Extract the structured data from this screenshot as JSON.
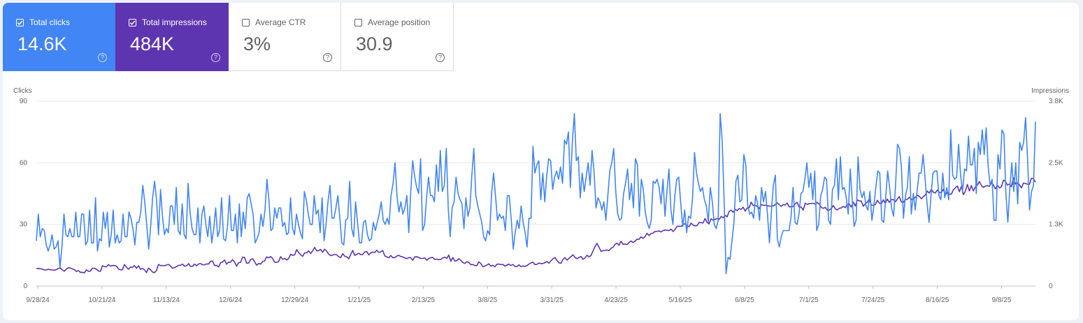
{
  "metrics": [
    {
      "label": "Total clicks",
      "value": "14.6K",
      "checked": true
    },
    {
      "label": "Total impressions",
      "value": "484K",
      "checked": true
    },
    {
      "label": "Average CTR",
      "value": "3%",
      "checked": false
    },
    {
      "label": "Average position",
      "value": "30.9",
      "checked": false
    }
  ],
  "colors": {
    "clicks": "#4285f4",
    "impressions": "#5e35b1",
    "grid": "#e8eaed",
    "text": "#5f6368",
    "axis": "#bdc1c6"
  },
  "icons": {
    "checkbox": "checkbox-icon",
    "help": "help-icon"
  },
  "chart_data": {
    "type": "line",
    "left_axis": {
      "label": "Clicks",
      "ticks": [
        "0",
        "30",
        "60",
        "90"
      ],
      "range": [
        0,
        90
      ]
    },
    "right_axis": {
      "label": "Impressions",
      "ticks": [
        "0",
        "1.3K",
        "2.5K",
        "3.8K"
      ],
      "range": [
        0,
        3800
      ]
    },
    "x_ticks": [
      "9/28/24",
      "10/21/24",
      "11/13/24",
      "12/6/24",
      "12/29/24",
      "1/21/25",
      "2/13/25",
      "3/8/25",
      "3/31/25",
      "4/23/25",
      "5/16/25",
      "6/8/25",
      "7/1/25",
      "7/24/25",
      "8/16/25",
      "9/8/25"
    ],
    "x_start": "9/28/24",
    "x_end": "9/26/25",
    "series": [
      {
        "key": "clicks",
        "axis": "left",
        "color": "#4285f4",
        "values": [
          22,
          35,
          24,
          28,
          27,
          20,
          17,
          20,
          25,
          18,
          19,
          22,
          9,
          19,
          35,
          25,
          24,
          28,
          24,
          24,
          36,
          24,
          24,
          35,
          35,
          20,
          22,
          37,
          21,
          21,
          43,
          17,
          23,
          22,
          36,
          28,
          36,
          19,
          25,
          37,
          21,
          25,
          21,
          22,
          35,
          24,
          24,
          36,
          33,
          28,
          20,
          31,
          31,
          36,
          49,
          41,
          30,
          18,
          29,
          43,
          51,
          42,
          25,
          47,
          34,
          25,
          28,
          26,
          39,
          39,
          30,
          48,
          27,
          25,
          40,
          25,
          23,
          50,
          36,
          28,
          25,
          25,
          38,
          21,
          35,
          39,
          30,
          24,
          34,
          21,
          28,
          38,
          24,
          27,
          43,
          23,
          22,
          29,
          44,
          27,
          27,
          35,
          21,
          40,
          24,
          36,
          28,
          43,
          45,
          40,
          35,
          21,
          23,
          26,
          35,
          29,
          37,
          52,
          42,
          27,
          28,
          38,
          33,
          38,
          38,
          29,
          31,
          25,
          26,
          43,
          28,
          25,
          35,
          30,
          26,
          23,
          46,
          42,
          35,
          30,
          30,
          44,
          35,
          37,
          26,
          43,
          22,
          30,
          41,
          49,
          33,
          33,
          38,
          44,
          33,
          21,
          20,
          32,
          33,
          51,
          28,
          24,
          41,
          31,
          21,
          21,
          31,
          32,
          25,
          22,
          23,
          31,
          27,
          31,
          35,
          41,
          32,
          30,
          33,
          30,
          44,
          50,
          60,
          44,
          36,
          41,
          35,
          38,
          44,
          26,
          46,
          61,
          53,
          48,
          45,
          62,
          27,
          30,
          43,
          53,
          44,
          44,
          41,
          59,
          46,
          66,
          46,
          49,
          67,
          38,
          24,
          38,
          41,
          53,
          45,
          42,
          40,
          28,
          43,
          34,
          38,
          54,
          67,
          44,
          39,
          35,
          31,
          24,
          22,
          27,
          25,
          45,
          55,
          44,
          32,
          35,
          33,
          34,
          27,
          44,
          44,
          32,
          18,
          26,
          32,
          28,
          39,
          31,
          26,
          19,
          33,
          33,
          68,
          55,
          59,
          61,
          42,
          55,
          41,
          54,
          62,
          61,
          47,
          53,
          56,
          52,
          58,
          50,
          71,
          69,
          75,
          48,
          70,
          84,
          61,
          63,
          43,
          55,
          46,
          53,
          60,
          49,
          66,
          56,
          38,
          43,
          41,
          37,
          41,
          32,
          44,
          56,
          60,
          67,
          46,
          35,
          32,
          33,
          45,
          50,
          57,
          42,
          50,
          38,
          62,
          59,
          34,
          52,
          47,
          36,
          31,
          28,
          32,
          51,
          50,
          52,
          48,
          40,
          52,
          34,
          46,
          57,
          37,
          30,
          44,
          52,
          53,
          40,
          29,
          37,
          26,
          34,
          33,
          43,
          65,
          55,
          50,
          46,
          48,
          42,
          39,
          31,
          48,
          41,
          30,
          28,
          32,
          84,
          71,
          42,
          6,
          14,
          13,
          22,
          31,
          51,
          54,
          41,
          42,
          64,
          59,
          39,
          35,
          36,
          33,
          44,
          40,
          32,
          48,
          41,
          46,
          35,
          21,
          36,
          49,
          54,
          23,
          19,
          24,
          27,
          27,
          27,
          27,
          34,
          48,
          31,
          30,
          35,
          45,
          46,
          52,
          60,
          48,
          55,
          42,
          56,
          27,
          30,
          44,
          47,
          53,
          52,
          32,
          30,
          47,
          49,
          62,
          42,
          63,
          47,
          48,
          43,
          35,
          57,
          42,
          29,
          32,
          63,
          47,
          43,
          46,
          39,
          37,
          46,
          32,
          39,
          48,
          56,
          55,
          32,
          31,
          43,
          56,
          48,
          38,
          34,
          49,
          69,
          67,
          58,
          33,
          44,
          48,
          63,
          35,
          45,
          37,
          47,
          55,
          55,
          64,
          52,
          40,
          31,
          44,
          55,
          56,
          56,
          44,
          42,
          55,
          43,
          48,
          42,
          76,
          54,
          52,
          53,
          69,
          54,
          46,
          57,
          56,
          73,
          59,
          59,
          67,
          45,
          70,
          64,
          76,
          64,
          77,
          58,
          49,
          52,
          32,
          32,
          64,
          57,
          76,
          74,
          45,
          31,
          48,
          60,
          46,
          60,
          40,
          70,
          66,
          70,
          82,
          62,
          37,
          46,
          49,
          80
        ]
      },
      {
        "key": "impressions",
        "axis": "right",
        "color": "#5e35b1",
        "values": [
          360,
          361,
          357,
          349,
          330,
          330,
          346,
          334,
          330,
          325,
          337,
          361,
          368,
          329,
          306,
          347,
          377,
          370,
          353,
          337,
          298,
          319,
          281,
          282,
          271,
          334,
          301,
          309,
          365,
          365,
          345,
          309,
          301,
          419,
          397,
          396,
          442,
          409,
          420,
          422,
          409,
          351,
          332,
          334,
          441,
          388,
          346,
          390,
          385,
          420,
          364,
          419,
          342,
          361,
          335,
          277,
          368,
          339,
          287,
          276,
          318,
          443,
          419,
          423,
          417,
          432,
          445,
          412,
          366,
          379,
          399,
          425,
          428,
          449,
          407,
          415,
          460,
          403,
          405,
          452,
          416,
          453,
          462,
          437,
          438,
          455,
          451,
          509,
          513,
          422,
          424,
          390,
          479,
          495,
          535,
          449,
          492,
          491,
          543,
          495,
          410,
          477,
          486,
          595,
          589,
          469,
          472,
          542,
          562,
          500,
          429,
          463,
          451,
          503,
          514,
          599,
          579,
          606,
          566,
          490,
          485,
          503,
          603,
          549,
          570,
          534,
          563,
          653,
          631,
          641,
          749,
          689,
          643,
          611,
          681,
          683,
          722,
          670,
          723,
          794,
          722,
          729,
          752,
          694,
          757,
          719,
          656,
          627,
          634,
          652,
          641,
          603,
          585,
          666,
          614,
          601,
          559,
          649,
          733,
          629,
          653,
          673,
          647,
          648,
          700,
          712,
          641,
          679,
          699,
          690,
          737,
          691,
          701,
          732,
          619,
          601,
          579,
          628,
          582,
          585,
          617,
          631,
          607,
          598,
          581,
          564,
          583,
          584,
          527,
          599,
          603,
          586,
          567,
          566,
          577,
          531,
          566,
          582,
          587,
          546,
          554,
          542,
          548,
          580,
          592,
          567,
          638,
          508,
          586,
          514,
          521,
          562,
          528,
          483,
          463,
          500,
          483,
          439,
          441,
          421,
          417,
          497,
          463,
          397,
          410,
          431,
          456,
          407,
          427,
          396,
          447,
          452,
          440,
          445,
          408,
          430,
          450,
          422,
          441,
          406,
          398,
          436,
          400,
          412,
          405,
          417,
          450,
          474,
          490,
          442,
          446,
          472,
          462,
          462,
          480,
          503,
          468,
          518,
          558,
          586,
          525,
          477,
          467,
          547,
          585,
          531,
          570,
          602,
          642,
          589,
          562,
          587,
          606,
          550,
          575,
          632,
          601,
          628,
          719,
          811,
          878,
          800,
          713,
          727,
          731,
          742,
          726,
          774,
          798,
          854,
          882,
          838,
          920,
          858,
          864,
          850,
          895,
          926,
          894,
          922,
          964,
          961,
          1011,
          980,
          1016,
          1084,
          1037,
          1078,
          1089,
          1121,
          1124,
          1133,
          1111,
          1138,
          1151,
          1146,
          1138,
          1168,
          1121,
          1163,
          1226,
          1229,
          1224,
          1265,
          1281,
          1231,
          1221,
          1293,
          1252,
          1236,
          1240,
          1308,
          1304,
          1295,
          1389,
          1308,
          1277,
          1383,
          1353,
          1374,
          1386,
          1366,
          1428,
          1405,
          1452,
          1422,
          1533,
          1562,
          1516,
          1578,
          1550,
          1591,
          1577,
          1622,
          1540,
          1602,
          1611,
          1725,
          1655,
          1659,
          1640,
          1590,
          1674,
          1661,
          1661,
          1651,
          1644,
          1642,
          1647,
          1672,
          1712,
          1673,
          1636,
          1673,
          1664,
          1706,
          1626,
          1633,
          1638,
          1694,
          1719,
          1620,
          1625,
          1560,
          1702,
          1678,
          1694,
          1696,
          1700,
          1683,
          1720,
          1687,
          1617,
          1596,
          1618,
          1561,
          1562,
          1591,
          1655,
          1589,
          1563,
          1599,
          1604,
          1636,
          1610,
          1675,
          1686,
          1623,
          1725,
          1645,
          1769,
          1751,
          1746,
          1638,
          1690,
          1724,
          1784,
          1664,
          1661,
          1675,
          1762,
          1705,
          1689,
          1771,
          1699,
          1788,
          1719,
          1777,
          1776,
          1728,
          1787,
          1838,
          1729,
          1718,
          1776,
          1783,
          1824,
          1781,
          1787,
          1824,
          1867,
          1843,
          1794,
          1837,
          1873,
          1951,
          1910,
          1987,
          1927,
          1913,
          1972,
          1922,
          1923,
          1991,
          1869,
          1928,
          1888,
          1889,
          1980,
          2021,
          2056,
          1938,
          2047,
          1879,
          1948,
          2090,
          1953,
          2065,
          1954,
          2041,
          2076,
          2150,
          2065,
          2026,
          2055,
          2062,
          2051,
          2119,
          2076,
          1996,
          2070,
          2016,
          2039,
          2177,
          2149,
          2077,
          2097,
          2042,
          2223,
          2098,
          2121,
          2080,
          2017,
          2117,
          2106,
          2095,
          2089,
          2216,
          2208,
          2135
        ]
      }
    ]
  }
}
